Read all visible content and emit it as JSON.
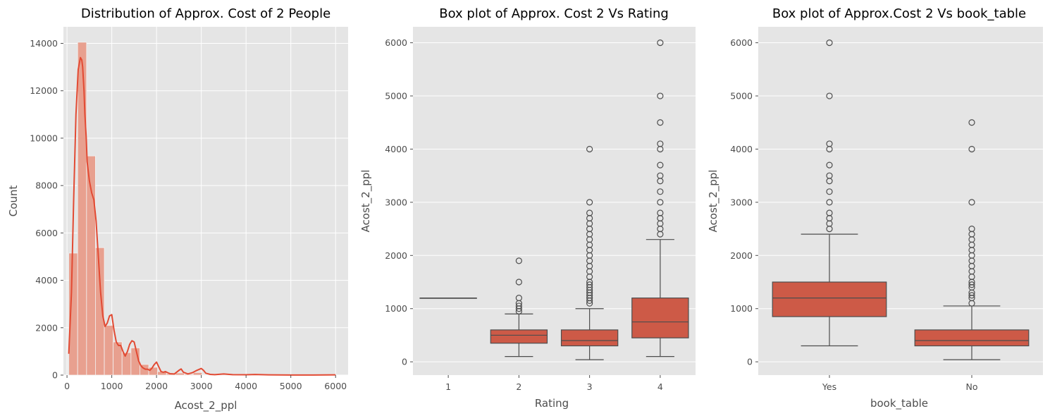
{
  "colors": {
    "panel_bg": "#E5E5E5",
    "grid": "#FFFFFF",
    "accent": "#E24A33",
    "bar_fill": "#E8A08F",
    "box_fill": "#CD5A47",
    "box_line": "#4D4D4D"
  },
  "chart_data": [
    {
      "type": "bar",
      "title": "Distribution of Approx. Cost of 2 People",
      "xlabel": "Acost_2_ppl",
      "ylabel": "Count",
      "xlim": [
        -80,
        6280
      ],
      "ylim": [
        0,
        14700
      ],
      "xticks": [
        0,
        1000,
        2000,
        3000,
        4000,
        5000,
        6000
      ],
      "yticks": [
        0,
        2000,
        4000,
        6000,
        8000,
        10000,
        12000,
        14000
      ],
      "grid": true,
      "bins": [
        {
          "x0": 40,
          "x1": 238,
          "count": 5150
        },
        {
          "x0": 238,
          "x1": 437,
          "count": 14050
        },
        {
          "x0": 437,
          "x1": 635,
          "count": 9250
        },
        {
          "x0": 635,
          "x1": 834,
          "count": 5380
        },
        {
          "x0": 834,
          "x1": 1032,
          "count": 2100
        },
        {
          "x0": 1032,
          "x1": 1230,
          "count": 1400
        },
        {
          "x0": 1230,
          "x1": 1429,
          "count": 950
        },
        {
          "x0": 1429,
          "x1": 1627,
          "count": 1150
        },
        {
          "x0": 1627,
          "x1": 1826,
          "count": 450
        },
        {
          "x0": 1826,
          "x1": 2024,
          "count": 330
        },
        {
          "x0": 2024,
          "x1": 2222,
          "count": 150
        },
        {
          "x0": 2222,
          "x1": 2421,
          "count": 60
        },
        {
          "x0": 2421,
          "x1": 2619,
          "count": 90
        },
        {
          "x0": 2619,
          "x1": 2818,
          "count": 40
        },
        {
          "x0": 2818,
          "x1": 3016,
          "count": 110
        },
        {
          "x0": 3016,
          "x1": 3214,
          "count": 20
        },
        {
          "x0": 3214,
          "x1": 3413,
          "count": 10
        },
        {
          "x0": 3413,
          "x1": 3611,
          "count": 15
        },
        {
          "x0": 3611,
          "x1": 3810,
          "count": 5
        },
        {
          "x0": 3810,
          "x1": 4008,
          "count": 25
        },
        {
          "x0": 4008,
          "x1": 4206,
          "count": 5
        },
        {
          "x0": 4206,
          "x1": 4405,
          "count": 2
        },
        {
          "x0": 4405,
          "x1": 4603,
          "count": 5
        },
        {
          "x0": 4603,
          "x1": 4802,
          "count": 2
        },
        {
          "x0": 4802,
          "x1": 5000,
          "count": 2
        },
        {
          "x0": 5000,
          "x1": 5198,
          "count": 3
        },
        {
          "x0": 5198,
          "x1": 5397,
          "count": 1
        },
        {
          "x0": 5397,
          "x1": 5595,
          "count": 1
        },
        {
          "x0": 5595,
          "x1": 5794,
          "count": 1
        },
        {
          "x0": 5794,
          "x1": 5992,
          "count": 3
        }
      ],
      "kde": {
        "x": [
          40,
          100,
          150,
          200,
          250,
          300,
          330,
          350,
          380,
          400,
          430,
          450,
          500,
          550,
          600,
          650,
          700,
          750,
          800,
          850,
          900,
          950,
          1000,
          1050,
          1100,
          1150,
          1200,
          1250,
          1300,
          1350,
          1400,
          1450,
          1500,
          1550,
          1600,
          1650,
          1700,
          1750,
          1800,
          1850,
          1900,
          1950,
          2000,
          2050,
          2100,
          2150,
          2200,
          2250,
          2300,
          2400,
          2500,
          2550,
          2600,
          2700,
          2800,
          2900,
          3000,
          3050,
          3100,
          3200,
          3300,
          3500,
          3700,
          4000,
          4200,
          4500,
          5000,
          5500,
          6000
        ],
        "y": [
          900,
          3500,
          7500,
          11000,
          12900,
          13400,
          13300,
          13000,
          12000,
          11000,
          10000,
          9000,
          8200,
          7700,
          7400,
          6500,
          5000,
          3500,
          2500,
          2050,
          2200,
          2500,
          2550,
          1900,
          1400,
          1250,
          1250,
          1000,
          800,
          1000,
          1300,
          1450,
          1400,
          1000,
          600,
          400,
          300,
          250,
          250,
          200,
          300,
          450,
          550,
          350,
          150,
          120,
          150,
          100,
          60,
          50,
          200,
          260,
          120,
          50,
          100,
          200,
          280,
          200,
          80,
          30,
          20,
          50,
          20,
          15,
          25,
          10,
          5,
          5,
          10
        ]
      }
    },
    {
      "type": "box",
      "title": "Box plot of Approx. Cost 2 Vs Rating",
      "xlabel": "Rating",
      "ylabel": "Acost_2_ppl",
      "ylim": [
        -250,
        6300
      ],
      "yticks": [
        0,
        1000,
        2000,
        3000,
        4000,
        5000,
        6000
      ],
      "grid": true,
      "categories": [
        "1",
        "2",
        "3",
        "4"
      ],
      "boxes": [
        {
          "q1": 1200,
          "median": 1200,
          "q3": 1200,
          "whislo": 1200,
          "whishi": 1200,
          "fliers": []
        },
        {
          "q1": 350,
          "median": 500,
          "q3": 600,
          "whislo": 100,
          "whishi": 900,
          "fliers": [
            950,
            1000,
            1050,
            1100,
            1200,
            1500,
            1900
          ]
        },
        {
          "q1": 300,
          "median": 400,
          "q3": 600,
          "whislo": 40,
          "whishi": 1000,
          "fliers": [
            1100,
            1150,
            1200,
            1250,
            1300,
            1350,
            1400,
            1450,
            1500,
            1600,
            1700,
            1800,
            1900,
            2000,
            2100,
            2200,
            2300,
            2400,
            2500,
            2600,
            2700,
            2800,
            3000,
            4000
          ]
        },
        {
          "q1": 450,
          "median": 750,
          "q3": 1200,
          "whislo": 100,
          "whishi": 2300,
          "fliers": [
            2400,
            2500,
            2600,
            2700,
            2800,
            3000,
            3200,
            3400,
            3500,
            3700,
            4000,
            4100,
            4500,
            5000,
            6000
          ]
        }
      ]
    },
    {
      "type": "box",
      "title": "Box plot of Approx.Cost 2 Vs book_table",
      "xlabel": "book_table",
      "ylabel": "Acost_2_ppl",
      "ylim": [
        -250,
        6300
      ],
      "yticks": [
        0,
        1000,
        2000,
        3000,
        4000,
        5000,
        6000
      ],
      "grid": true,
      "categories": [
        "Yes",
        "No"
      ],
      "boxes": [
        {
          "q1": 850,
          "median": 1200,
          "q3": 1500,
          "whislo": 300,
          "whishi": 2400,
          "fliers": [
            2500,
            2600,
            2700,
            2800,
            3000,
            3200,
            3400,
            3500,
            3700,
            4000,
            4100,
            5000,
            6000
          ]
        },
        {
          "q1": 300,
          "median": 400,
          "q3": 600,
          "whislo": 40,
          "whishi": 1050,
          "fliers": [
            1100,
            1200,
            1250,
            1300,
            1400,
            1450,
            1500,
            1600,
            1700,
            1800,
            1900,
            2000,
            2100,
            2200,
            2300,
            2400,
            2500,
            3000,
            4000,
            4500
          ]
        }
      ]
    }
  ]
}
